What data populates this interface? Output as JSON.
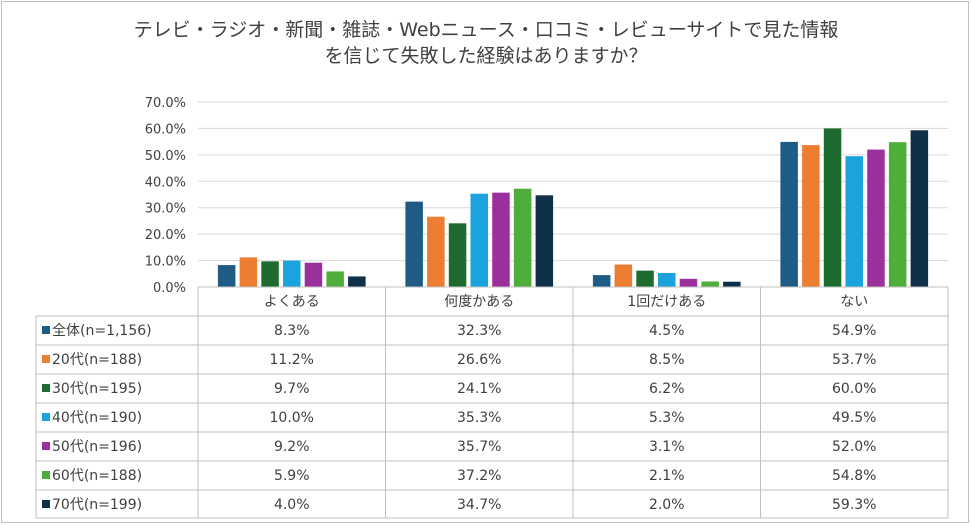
{
  "chart_data": {
    "type": "bar",
    "title_line1": "テレビ・ラジオ・新聞・雑誌・Webニュース・口コミ・レビューサイトで見た情報",
    "title_line2": "を信じて失敗した経験はありますか？",
    "categories": [
      "よくある",
      "何度かある",
      "1回だけある",
      "ない"
    ],
    "ylim": [
      0,
      70
    ],
    "yticks": [
      "0.0%",
      "10.0%",
      "20.0%",
      "30.0%",
      "40.0%",
      "50.0%",
      "60.0%",
      "70.0%"
    ],
    "grid": true,
    "legend": "data-table",
    "series": [
      {
        "name": "全体(n=1,156)",
        "color": "#1f5c85",
        "values": [
          8.3,
          32.3,
          4.5,
          54.9
        ],
        "labels": [
          "8.3%",
          "32.3%",
          "4.5%",
          "54.9%"
        ]
      },
      {
        "name": "20代(n=188)",
        "color": "#ed7d31",
        "values": [
          11.2,
          26.6,
          8.5,
          53.7
        ],
        "labels": [
          "11.2%",
          "26.6%",
          "8.5%",
          "53.7%"
        ]
      },
      {
        "name": "30代(n=195)",
        "color": "#1e6b30",
        "values": [
          9.7,
          24.1,
          6.2,
          60.0
        ],
        "labels": [
          "9.7%",
          "24.1%",
          "6.2%",
          "60.0%"
        ]
      },
      {
        "name": "40代(n=190)",
        "color": "#1aa3dd",
        "values": [
          10.0,
          35.3,
          5.3,
          49.5
        ],
        "labels": [
          "10.0%",
          "35.3%",
          "5.3%",
          "49.5%"
        ]
      },
      {
        "name": "50代(n=196)",
        "color": "#9b2f9b",
        "values": [
          9.2,
          35.7,
          3.1,
          52.0
        ],
        "labels": [
          "9.2%",
          "35.7%",
          "3.1%",
          "52.0%"
        ]
      },
      {
        "name": "60代(n=188)",
        "color": "#4fae3a",
        "values": [
          5.9,
          37.2,
          2.1,
          54.8
        ],
        "labels": [
          "5.9%",
          "37.2%",
          "2.1%",
          "54.8%"
        ]
      },
      {
        "name": "70代(n=199)",
        "color": "#0e3049",
        "values": [
          4.0,
          34.7,
          2.0,
          59.3
        ],
        "labels": [
          "4.0%",
          "34.7%",
          "2.0%",
          "59.3%"
        ]
      }
    ]
  }
}
